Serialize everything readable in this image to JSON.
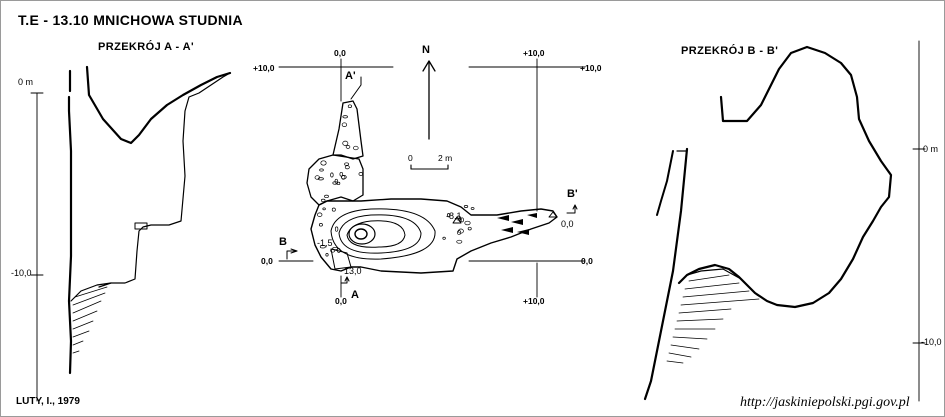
{
  "title": "T.E - 13.10  MNICHOWA STUDNIA",
  "author": "LUTY, I., 1979",
  "source_url": "http://jaskiniepolski.pgi.gov.pl",
  "section_aa": {
    "label": "PRZEKRÓJ  A - A'",
    "depth_ticks": [
      "0 m",
      "-10,0"
    ]
  },
  "section_bb": {
    "label": "PRZEKRÓJ  B - B'",
    "depth_ticks": [
      "0 m",
      "-10,0"
    ]
  },
  "plan": {
    "north_label": "N",
    "scale": {
      "start": "0",
      "end": "2 m"
    },
    "grid_labels": {
      "top_left_x": "0,0",
      "top_right_x": "+10,0",
      "left_top_y": "+10,0",
      "right_top_y": "+10,0",
      "left_bottom_y": "0,0",
      "right_bottom_y": "0,0",
      "bottom_left_x": "0,0",
      "bottom_right_x": "+10,0"
    },
    "section_marks": {
      "a": "A",
      "a_prime": "A'",
      "b": "B",
      "b_prime": "B'"
    },
    "spot_heights": [
      "-1,5",
      "-8,1",
      "0,0",
      "13,0"
    ]
  }
}
